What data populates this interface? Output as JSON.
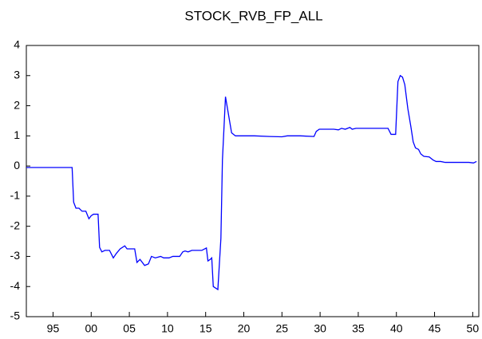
{
  "chart_data": {
    "type": "line",
    "title": "STOCK_RVB_FP_ALL",
    "color": "#0000ff",
    "x": [
      1991.5,
      1994.3,
      1997.5,
      1997.7,
      1998.0,
      1998.4,
      1998.8,
      1999.3,
      1999.7,
      2000.0,
      2000.3,
      2000.9,
      2001.1,
      2001.4,
      2001.8,
      2002.4,
      2002.9,
      2003.3,
      2003.8,
      2004.4,
      2004.7,
      2005.7,
      2006.0,
      2006.4,
      2006.7,
      2007.0,
      2007.5,
      2007.9,
      2008.4,
      2009.1,
      2009.5,
      2010.2,
      2010.7,
      2011.6,
      2012.0,
      2012.3,
      2012.7,
      2013.2,
      2014.5,
      2015.1,
      2015.3,
      2015.6,
      2015.8,
      2016.0,
      2016.6,
      2017.0,
      2017.2,
      2017.6,
      2018.0,
      2018.4,
      2018.9,
      2021.4,
      2023.4,
      2025.0,
      2025.7,
      2027.4,
      2029.2,
      2029.5,
      2029.9,
      2031.8,
      2032.4,
      2032.8,
      2033.3,
      2033.9,
      2034.2,
      2034.7,
      2037.0,
      2038.9,
      2039.3,
      2039.9,
      2040.2,
      2040.5,
      2040.8,
      2041.1,
      2041.5,
      2041.9,
      2042.2,
      2042.5,
      2042.9,
      2043.2,
      2043.6,
      2044.3,
      2044.8,
      2045.2,
      2045.8,
      2046.4,
      2048.4,
      2049.5,
      2050.1,
      2050.5
    ],
    "values": [
      -0.05,
      -0.05,
      -0.05,
      -1.2,
      -1.4,
      -1.4,
      -1.5,
      -1.5,
      -1.75,
      -1.65,
      -1.6,
      -1.6,
      -2.7,
      -2.85,
      -2.8,
      -2.8,
      -3.05,
      -2.9,
      -2.75,
      -2.65,
      -2.75,
      -2.75,
      -3.2,
      -3.1,
      -3.2,
      -3.3,
      -3.25,
      -3.0,
      -3.05,
      -3.0,
      -3.05,
      -3.05,
      -3.0,
      -3.0,
      -2.85,
      -2.82,
      -2.85,
      -2.8,
      -2.8,
      -2.72,
      -3.15,
      -3.1,
      -3.05,
      -4.0,
      -4.1,
      -2.4,
      0.2,
      2.3,
      1.7,
      1.1,
      1.0,
      1.0,
      0.98,
      0.97,
      1.0,
      1.0,
      0.98,
      1.15,
      1.22,
      1.22,
      1.2,
      1.25,
      1.22,
      1.28,
      1.22,
      1.25,
      1.25,
      1.25,
      1.05,
      1.05,
      2.8,
      3.0,
      2.95,
      2.7,
      1.9,
      1.3,
      0.8,
      0.6,
      0.55,
      0.4,
      0.32,
      0.3,
      0.2,
      0.15,
      0.15,
      0.12,
      0.12,
      0.12,
      0.1,
      0.15
    ],
    "xlim": [
      1991.5,
      2050.8
    ],
    "xticks": [
      {
        "value": 1995,
        "label": "95"
      },
      {
        "value": 2000,
        "label": "00"
      },
      {
        "value": 2005,
        "label": "05"
      },
      {
        "value": 2010,
        "label": "10"
      },
      {
        "value": 2015,
        "label": "15"
      },
      {
        "value": 2020,
        "label": "20"
      },
      {
        "value": 2025,
        "label": "25"
      },
      {
        "value": 2030,
        "label": "30"
      },
      {
        "value": 2035,
        "label": "35"
      },
      {
        "value": 2040,
        "label": "40"
      },
      {
        "value": 2045,
        "label": "45"
      },
      {
        "value": 2050,
        "label": "50"
      }
    ],
    "ylim": [
      -5,
      4
    ],
    "yticks": [
      4,
      3,
      2,
      1,
      0,
      -1,
      -2,
      -3,
      -4,
      -5
    ]
  }
}
